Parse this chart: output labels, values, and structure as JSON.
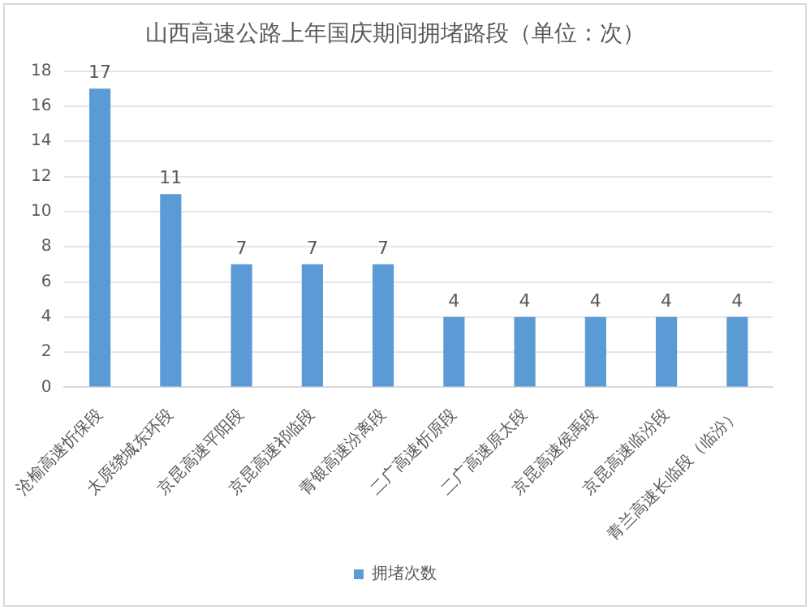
{
  "chart_data": {
    "type": "bar",
    "title": "山西高速公路上年国庆期间拥堵路段（单位：次）",
    "categories": [
      "沧榆高速忻保段",
      "太原绕城东环段",
      "京昆高速平阳段",
      "京昆高速祁临段",
      "青银高速汾离段",
      "二广高速忻原段",
      "二广高速原太段",
      "京昆高速侯禹段",
      "京昆高速临汾段",
      "青兰高速长临段（临汾）"
    ],
    "series": [
      {
        "name": "拥堵次数",
        "color": "#5b9bd5",
        "values": [
          17,
          11,
          7,
          7,
          7,
          4,
          4,
          4,
          4,
          4
        ]
      }
    ],
    "ylim": [
      0,
      18
    ],
    "yticks": [
      0,
      2,
      4,
      6,
      8,
      10,
      12,
      14,
      16,
      18
    ],
    "grid": "y",
    "legend": "bottom",
    "data_labels": true
  }
}
